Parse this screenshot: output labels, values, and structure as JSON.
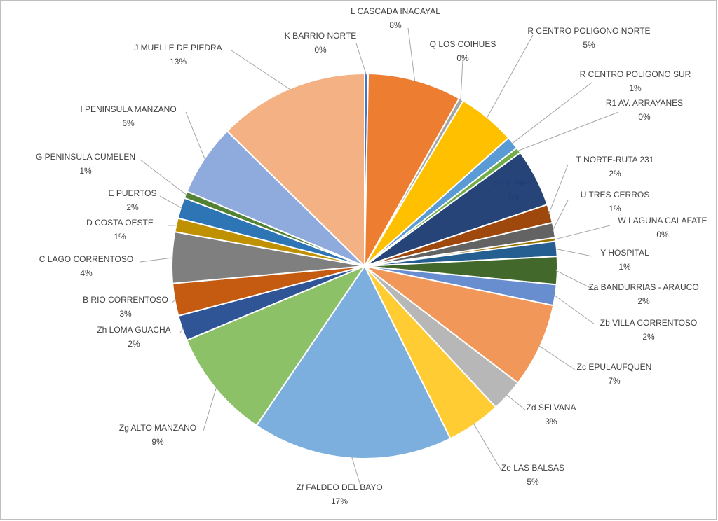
{
  "chart_data": {
    "type": "pie",
    "title": "",
    "slices": [
      {
        "name": "K BARRIO NORTE",
        "label": "0%",
        "value": 0.3,
        "color": "#4472c4"
      },
      {
        "name": "L CASCADA INACAYAL",
        "label": "8%",
        "value": 8.1,
        "color": "#ed7d31"
      },
      {
        "name": "Q LOS COIHUES",
        "label": "0%",
        "value": 0.4,
        "color": "#a5a5a5"
      },
      {
        "name": "R CENTRO POLIGONO NORTE",
        "label": "5%",
        "value": 5.0,
        "color": "#ffc000"
      },
      {
        "name": "R CENTRO POLIGONO SUR",
        "label": "1%",
        "value": 1.1,
        "color": "#5b9bd5"
      },
      {
        "name": "R1 AV. ARRAYANES",
        "label": "0%",
        "value": 0.5,
        "color": "#70ad47"
      },
      {
        "name": "S EL PAYE",
        "label": "5%",
        "value": 5.0,
        "color": "#264478"
      },
      {
        "name": "T NORTE-RUTA 231",
        "label": "2%",
        "value": 1.6,
        "color": "#9e480e"
      },
      {
        "name": "U TRES CERROS",
        "label": "1%",
        "value": 1.3,
        "color": "#636363"
      },
      {
        "name": "W LAGUNA CALAFATE",
        "label": "0%",
        "value": 0.3,
        "color": "#997300"
      },
      {
        "name": "Y HOSPITAL",
        "label": "1%",
        "value": 1.3,
        "color": "#255e91"
      },
      {
        "name": "Za BANDURRIAS - ARAUCO",
        "label": "2%",
        "value": 2.4,
        "color": "#43682b"
      },
      {
        "name": "Zb VILLA CORRENTOSO",
        "label": "2%",
        "value": 1.8,
        "color": "#698ed0"
      },
      {
        "name": "Zc EPULAUFQUEN",
        "label": "7%",
        "value": 7.3,
        "color": "#f1975a"
      },
      {
        "name": "Zd SELVANA",
        "label": "3%",
        "value": 2.8,
        "color": "#b7b7b7"
      },
      {
        "name": "Ze LAS BALSAS",
        "label": "5%",
        "value": 4.7,
        "color": "#ffcd33"
      },
      {
        "name": "Zf FALDEO DEL BAYO",
        "label": "17%",
        "value": 17.3,
        "color": "#7cafdd"
      },
      {
        "name": "Zg ALTO MANZANO",
        "label": "9%",
        "value": 9.5,
        "color": "#8cc168"
      },
      {
        "name": "Zh LOMA GUACHA",
        "label": "2%",
        "value": 2.2,
        "color": "#2f5597"
      },
      {
        "name": "B RIO CORRENTOSO",
        "label": "3%",
        "value": 2.8,
        "color": "#c55a11"
      },
      {
        "name": "C LAGO CORRENTOSO",
        "label": "4%",
        "value": 4.4,
        "color": "#7f7f7f"
      },
      {
        "name": "D COSTA OESTE",
        "label": "1%",
        "value": 1.2,
        "color": "#bf9000"
      },
      {
        "name": "E PUERTOS",
        "label": "2%",
        "value": 1.8,
        "color": "#2e75b6"
      },
      {
        "name": "G PENINSULA CUMELEN",
        "label": "1%",
        "value": 0.6,
        "color": "#548235"
      },
      {
        "name": "I PENINSULA MANZANO",
        "label": "6%",
        "value": 6.2,
        "color": "#8faadc"
      },
      {
        "name": "J MUELLE DE PIEDRA",
        "label": "13%",
        "value": 13.0,
        "color": "#f4b183"
      }
    ],
    "legend": "none",
    "data_labels": "outside-with-leader-lines"
  }
}
